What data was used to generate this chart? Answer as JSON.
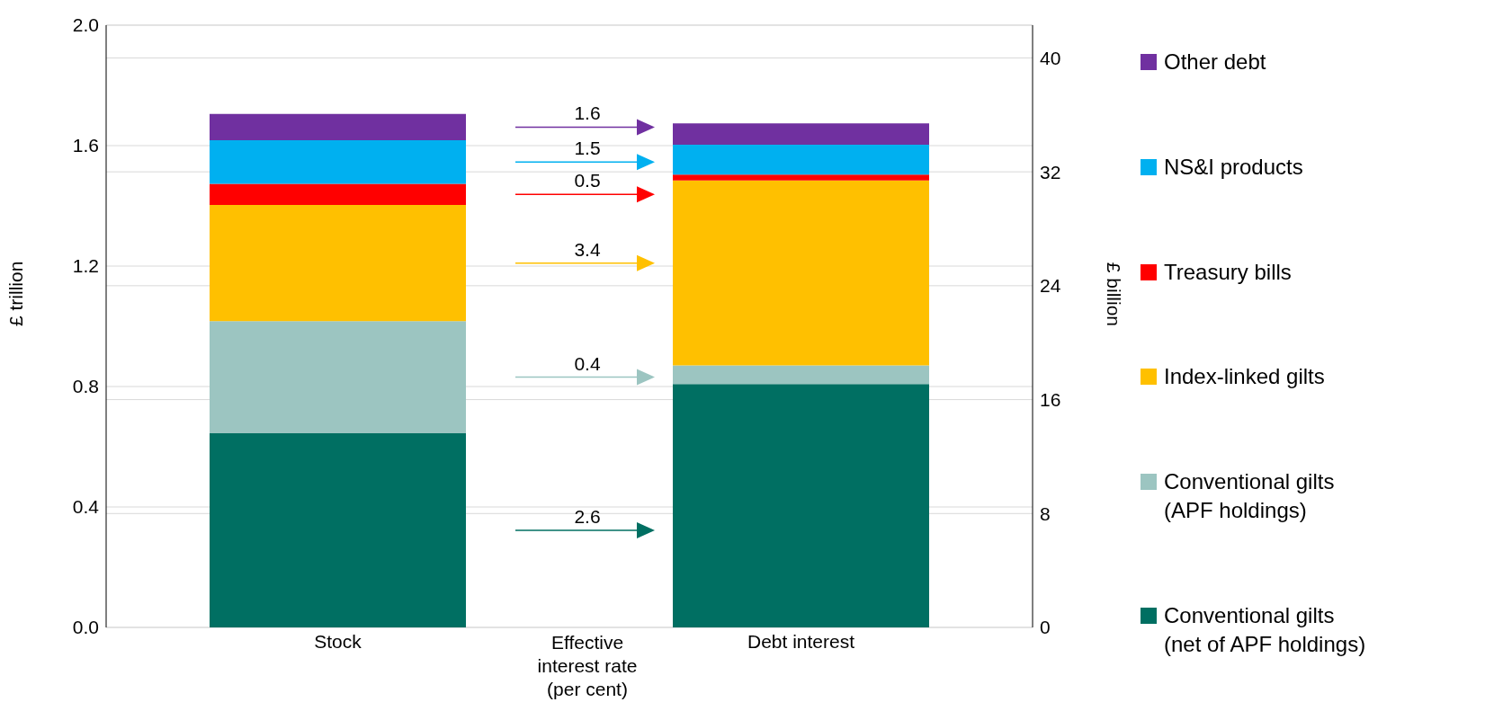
{
  "chart_data": {
    "type": "bar",
    "stacked": true,
    "categories": [
      "Stock",
      "Debt interest"
    ],
    "xlabel": "Effective interest rate (per cent)",
    "ylabel": "£ trillion",
    "y2label": "£ billion",
    "series": [
      {
        "name": "Conventional gilts (net of APF holdings)",
        "color": "#006f62",
        "values": [
          0.645,
          null
        ]
      },
      {
        "name": "Conventional gilts (APF holdings)",
        "color": "#9cc5c1",
        "values": [
          0.372,
          null
        ]
      },
      {
        "name": "Index-linked gilts",
        "color": "#ffc000",
        "values": [
          0.386,
          null
        ]
      },
      {
        "name": "Treasury bills",
        "color": "#ff0000",
        "values": [
          0.07,
          null
        ]
      },
      {
        "name": "NS&I products",
        "color": "#00b0f0",
        "values": [
          0.145,
          null
        ]
      },
      {
        "name": "Other debt",
        "color": "#7030a0",
        "values": [
          0.087,
          null
        ]
      },
      {
        "color": "#006f62",
        "axis": "y2",
        "values": [
          null,
          17.1
        ]
      },
      {
        "color": "#9cc5c1",
        "axis": "y2",
        "values": [
          null,
          1.3
        ]
      },
      {
        "color": "#ffc000",
        "axis": "y2",
        "values": [
          null,
          13.0
        ]
      },
      {
        "color": "#ff0000",
        "axis": "y2",
        "values": [
          null,
          0.4
        ]
      },
      {
        "color": "#00b0f0",
        "axis": "y2",
        "values": [
          null,
          2.1
        ]
      },
      {
        "color": "#7030a0",
        "axis": "y2",
        "values": [
          null,
          1.5
        ]
      }
    ],
    "annotations": [
      "2.6",
      "0.4",
      "3.4",
      "0.5",
      "1.5",
      "1.6"
    ],
    "ylim": [
      0,
      2
    ],
    "yticks": [
      {
        "value": 0,
        "label": "0.0"
      },
      {
        "value": 0.4,
        "label": "0.4"
      },
      {
        "value": 0.8,
        "label": "0.8"
      },
      {
        "value": 1.2,
        "label": "1.2"
      },
      {
        "value": 1.6,
        "label": "1.6"
      },
      {
        "value": 2,
        "label": "2.0"
      }
    ],
    "y2lim": [
      0,
      42.3
    ],
    "y2ticks": [
      0,
      8,
      16,
      24,
      32,
      40
    ],
    "grid": "y",
    "legend": "right"
  }
}
